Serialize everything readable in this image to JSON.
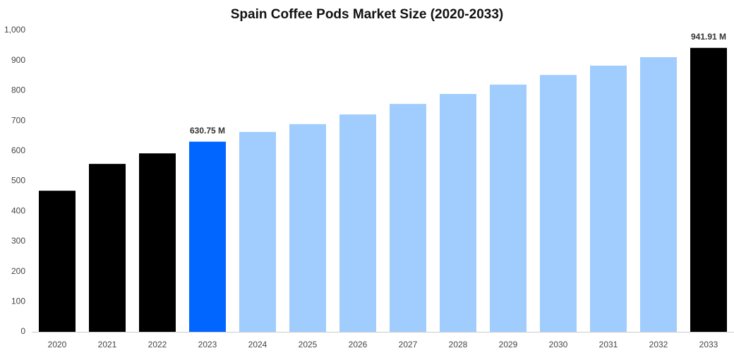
{
  "chart_data": {
    "type": "bar",
    "title": "Spain Coffee Pods Market Size (2020-2033)",
    "categories": [
      "2020",
      "2021",
      "2022",
      "2023",
      "2024",
      "2025",
      "2026",
      "2027",
      "2028",
      "2029",
      "2030",
      "2031",
      "2032",
      "2033"
    ],
    "values": [
      468,
      557,
      592,
      630.75,
      663,
      689,
      721,
      756,
      789,
      820,
      852,
      883,
      911,
      941.91
    ],
    "value_labels": [
      null,
      null,
      null,
      "630.75 M",
      null,
      null,
      null,
      null,
      null,
      null,
      null,
      null,
      null,
      "941.91 M"
    ],
    "colors": [
      "#000000",
      "#000000",
      "#000000",
      "#0066ff",
      "#a0cdfd",
      "#a0cdfd",
      "#a0cdfd",
      "#a0cdfd",
      "#a0cdfd",
      "#a0cdfd",
      "#a0cdfd",
      "#a0cdfd",
      "#a0cdfd",
      "#000000"
    ],
    "ylim": [
      0,
      1000
    ],
    "yticks": [
      0,
      100,
      200,
      300,
      400,
      500,
      600,
      700,
      800,
      900,
      {
        "value": 1000,
        "label": "1,000"
      }
    ],
    "grid": false
  }
}
